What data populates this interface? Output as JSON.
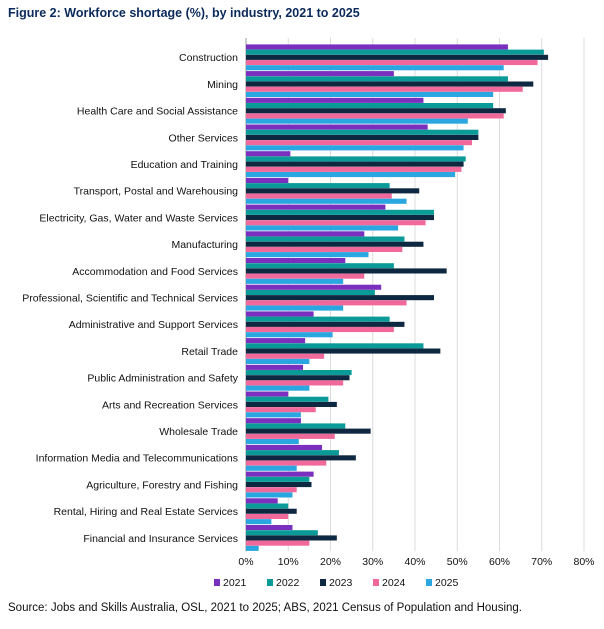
{
  "chart_data": {
    "type": "bar",
    "orientation": "horizontal",
    "title": "Figure 2: Workforce shortage (%), by industry, 2021 to 2025",
    "xlim": [
      0,
      80
    ],
    "xticks": [
      "0%",
      "10%",
      "20%",
      "30%",
      "40%",
      "50%",
      "60%",
      "70%",
      "80%"
    ],
    "xtick_values": [
      0,
      10,
      20,
      30,
      40,
      50,
      60,
      70,
      80
    ],
    "grid": true,
    "legend_position": "bottom",
    "categories": [
      "Construction",
      "Mining",
      "Health Care and Social Assistance",
      "Other Services",
      "Education and Training",
      "Transport, Postal and Warehousing",
      "Electricity, Gas, Water and Waste Services",
      "Manufacturing",
      "Accommodation and Food Services",
      "Professional, Scientific and Technical Services",
      "Administrative and Support Services",
      "Retail Trade",
      "Public Administration and Safety",
      "Arts and Recreation Services",
      "Wholesale Trade",
      "Information Media and Telecommunications",
      "Agriculture, Forestry and Fishing",
      "Rental, Hiring and Real Estate Services",
      "Financial and Insurance Services"
    ],
    "series": [
      {
        "name": "2021",
        "color": "#7b2fbf",
        "values": [
          62,
          35,
          42,
          43,
          10.5,
          10,
          33,
          28,
          23.5,
          32,
          16,
          14,
          13.5,
          10,
          13,
          18,
          16,
          7.5,
          11
        ]
      },
      {
        "name": "2022",
        "color": "#0a9a97",
        "values": [
          70.5,
          62,
          58.5,
          55,
          52,
          34,
          44.5,
          37.5,
          35,
          30.5,
          34,
          42,
          25,
          19.5,
          23.5,
          22,
          15,
          10,
          17
        ]
      },
      {
        "name": "2023",
        "color": "#0e2841",
        "values": [
          71.5,
          68,
          61.5,
          55,
          51.5,
          41,
          44.5,
          42,
          47.5,
          44.5,
          37.5,
          46,
          24.5,
          21.5,
          29.5,
          26,
          15.5,
          12,
          21.5
        ]
      },
      {
        "name": "2024",
        "color": "#f1699a",
        "values": [
          69,
          65.5,
          61,
          53.5,
          51,
          34.5,
          42.5,
          37,
          28,
          38,
          35,
          18.5,
          23,
          16.5,
          21,
          19,
          12,
          10,
          15
        ]
      },
      {
        "name": "2025",
        "color": "#2aa7e0",
        "values": [
          61,
          58.5,
          52.5,
          51.5,
          49.5,
          38,
          36,
          29,
          23,
          23,
          20.5,
          15,
          15,
          13,
          12.5,
          12,
          11,
          6,
          3
        ]
      }
    ]
  },
  "source": "Source: Jobs and Skills Australia, OSL, 2021 to 2025; ABS, 2021 Census of Population and Housing."
}
